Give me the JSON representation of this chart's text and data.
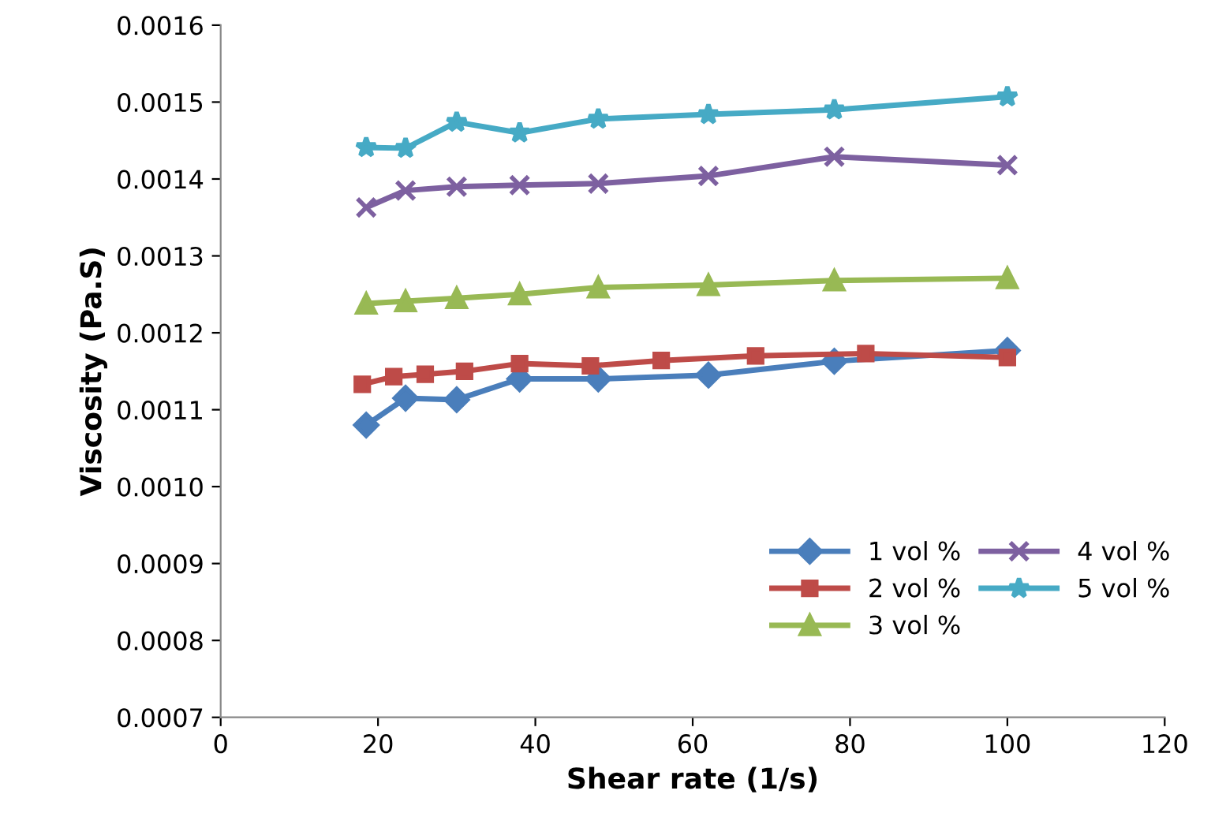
{
  "chart_data": {
    "type": "line",
    "xlabel": "Shear rate (1/s)",
    "ylabel": "Viscosity (Pa.S)",
    "xlim": [
      0,
      120
    ],
    "xticks": [
      0,
      20,
      40,
      60,
      80,
      100,
      120
    ],
    "ylim": [
      0.0007,
      0.0016
    ],
    "yticks": [
      {
        "value": 0.0007,
        "label": "0.0007"
      },
      {
        "value": 0.0008,
        "label": "0.0008"
      },
      {
        "value": 0.0009,
        "label": "0.0009"
      },
      {
        "value": 0.001,
        "label": "0.0010"
      },
      {
        "value": 0.0011,
        "label": "0.0011"
      },
      {
        "value": 0.0012,
        "label": "0.0012"
      },
      {
        "value": 0.0013,
        "label": "0.0013"
      },
      {
        "value": 0.0014,
        "label": "0.0014"
      },
      {
        "value": 0.0015,
        "label": "0.0015"
      },
      {
        "value": 0.0016,
        "label": "0.0016"
      }
    ],
    "grid": false,
    "legend": "bottom right",
    "series": [
      {
        "name": "1 vol %",
        "color": "#4a7ebb",
        "marker": "diamond",
        "x": [
          18.5,
          23.5,
          30,
          38,
          48,
          62,
          78,
          100
        ],
        "values": [
          0.00108,
          0.001115,
          0.001113,
          0.00114,
          0.00114,
          0.001145,
          0.001163,
          0.001177
        ]
      },
      {
        "name": "2 vol %",
        "color": "#be4b48",
        "marker": "square",
        "x": [
          18,
          22,
          26,
          31,
          38,
          47,
          56,
          68,
          82,
          100
        ],
        "values": [
          0.001133,
          0.001143,
          0.001146,
          0.00115,
          0.00116,
          0.001157,
          0.001164,
          0.00117,
          0.001173,
          0.001168
        ]
      },
      {
        "name": "3 vol %",
        "color": "#98b954",
        "marker": "triangle",
        "x": [
          18.5,
          23.5,
          30,
          38,
          48,
          62,
          78,
          100
        ],
        "values": [
          0.001238,
          0.001241,
          0.001245,
          0.00125,
          0.001259,
          0.001262,
          0.001268,
          0.001271
        ]
      },
      {
        "name": "4 vol %",
        "color": "#7d60a0",
        "marker": "cross",
        "x": [
          18.5,
          23.5,
          30,
          38,
          48,
          62,
          78,
          100
        ],
        "values": [
          0.001363,
          0.001385,
          0.00139,
          0.001392,
          0.001394,
          0.001404,
          0.001429,
          0.001418
        ]
      },
      {
        "name": "5 vol %",
        "color": "#46aac5",
        "marker": "star",
        "x": [
          18.5,
          23.5,
          30,
          38,
          48,
          62,
          78,
          100
        ],
        "values": [
          0.001441,
          0.00144,
          0.001474,
          0.00146,
          0.001478,
          0.001484,
          0.00149,
          0.001507
        ]
      }
    ]
  }
}
